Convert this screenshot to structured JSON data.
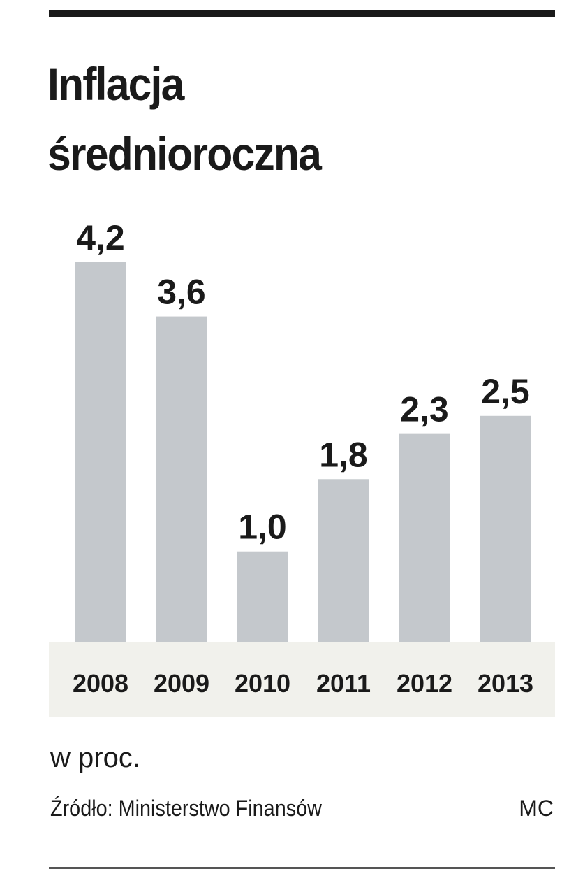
{
  "title_line1": "Inflacja",
  "title_line2": "średnioroczna",
  "unit_note": "w proc.",
  "source": "Źródło: Ministerstwo Finansów",
  "credit": "MC",
  "colors": {
    "bar": "#c4c8cc",
    "axis_band": "#f1f1ec",
    "text": "#1a1a1a"
  },
  "chart_data": {
    "type": "bar",
    "title": "Inflacja średnioroczna",
    "categories": [
      "2008",
      "2009",
      "2010",
      "2011",
      "2012",
      "2013"
    ],
    "values": [
      4.2,
      3.6,
      1.0,
      1.8,
      2.3,
      2.5
    ],
    "value_labels": [
      "4,2",
      "3,6",
      "1,0",
      "1,8",
      "2,3",
      "2,5"
    ],
    "xlabel": "",
    "ylabel": "w proc.",
    "ylim": [
      0,
      4.2
    ],
    "grid": false,
    "legend": "none"
  }
}
